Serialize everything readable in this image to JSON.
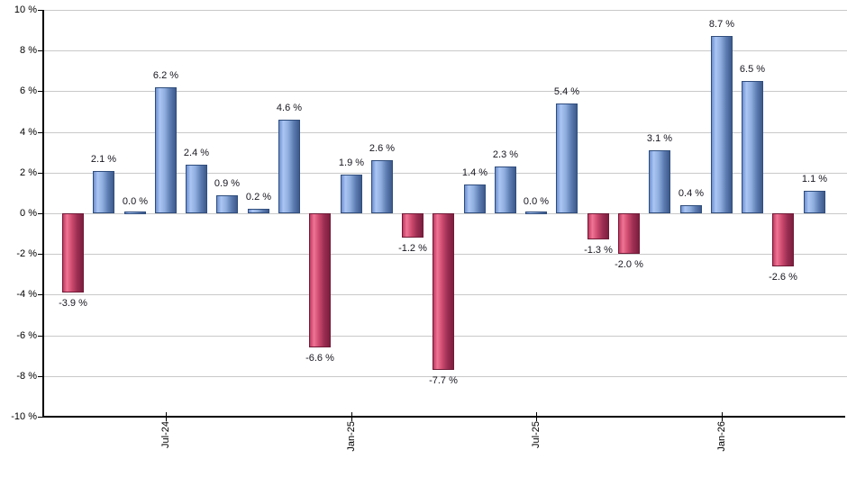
{
  "chart_data": {
    "type": "bar",
    "title": "",
    "xlabel": "",
    "ylabel": "",
    "ylim": [
      -10,
      10
    ],
    "grid": true,
    "bar_count": 25,
    "values": [
      -3.9,
      2.1,
      0.0,
      6.2,
      2.4,
      0.9,
      0.2,
      4.6,
      -6.6,
      1.9,
      2.6,
      -1.2,
      -7.7,
      1.4,
      2.3,
      0.0,
      5.4,
      -1.3,
      -2.0,
      3.1,
      0.4,
      8.7,
      6.5,
      -2.6,
      1.1
    ],
    "bar_labels": [
      "-3.9 %",
      "2.1 %",
      "0.0 %",
      "6.2 %",
      "2.4 %",
      "0.9 %",
      "0.2 %",
      "4.6 %",
      "-6.6 %",
      "1.9 %",
      "2.6 %",
      "-1.2 %",
      "-7.7 %",
      "1.4 %",
      "2.3 %",
      "0.0 %",
      "5.4 %",
      "-1.3 %",
      "-2.0 %",
      "3.1 %",
      "0.4 %",
      "8.7 %",
      "6.5 %",
      "-2.6 %",
      "1.1 %"
    ],
    "x_ticks": [
      {
        "label": "Jul-24",
        "bar_index": 3
      },
      {
        "label": "Jan-25",
        "bar_index": 9
      },
      {
        "label": "Jul-25",
        "bar_index": 15
      },
      {
        "label": "Jan-26",
        "bar_index": 21
      }
    ],
    "y_ticks": [
      {
        "label": "10 %",
        "value": 10
      },
      {
        "label": "8 %",
        "value": 8
      },
      {
        "label": "6 %",
        "value": 6
      },
      {
        "label": "4 %",
        "value": 4
      },
      {
        "label": "2 %",
        "value": 2
      },
      {
        "label": "0 %",
        "value": 0
      },
      {
        "label": "-2 %",
        "value": -2
      },
      {
        "label": "-4 %",
        "value": -4
      },
      {
        "label": "-6 %",
        "value": -6
      },
      {
        "label": "-8 %",
        "value": -8
      },
      {
        "label": "-10 %",
        "value": -10
      }
    ],
    "legend": null,
    "colors": {
      "positive_bar_gradient": [
        "#6e8fd0",
        "#abc6f3",
        "#8fadde",
        "#5d7cb1",
        "#3e5a8c"
      ],
      "positive_bar_border": "#2f4d7d",
      "negative_bar_gradient": [
        "#c13a61",
        "#ef7495",
        "#cc4a6e",
        "#9a2e52",
        "#7d1e3e"
      ],
      "negative_bar_border": "#701a37",
      "gridline": "#c9c9c9",
      "axis": "#000000",
      "value_label_text": "#16161f"
    }
  }
}
